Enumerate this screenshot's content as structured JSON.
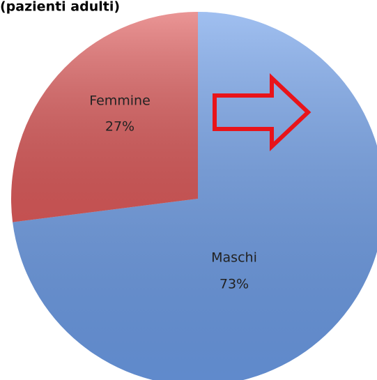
{
  "chart_data": {
    "type": "pie",
    "title": "(pazienti adulti)",
    "categories": [
      "Maschi",
      "Femmine"
    ],
    "values": [
      73,
      27
    ],
    "value_labels": [
      "73%",
      "27%"
    ],
    "colors": [
      "#6d9de8",
      "#df5c5c"
    ]
  }
}
